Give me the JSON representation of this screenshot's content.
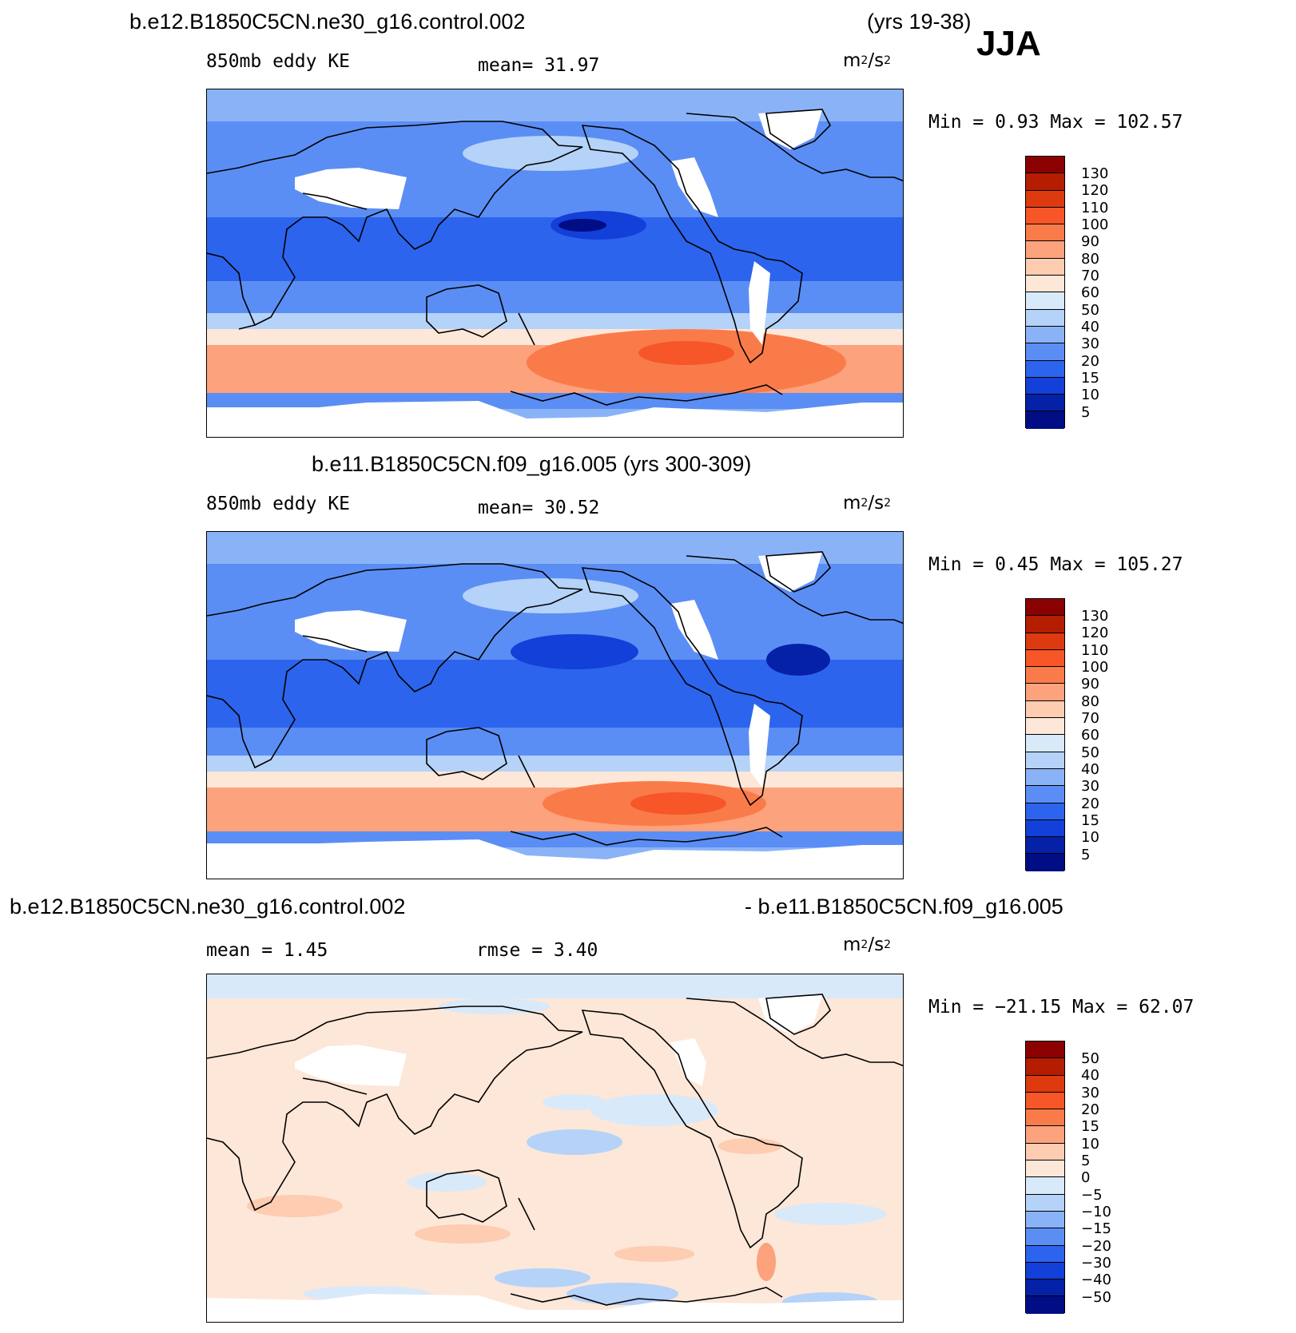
{
  "season": "JJA",
  "panels": [
    {
      "title": "b.e12.B1850C5CN.ne30_g16.control.002",
      "years": "(yrs 19-38)",
      "left_label": "850mb eddy KE",
      "center_label": "mean=   31.97",
      "units_base": "m",
      "units_sup1": "2",
      "units_mid": "/s",
      "units_sup2": "2",
      "minmax": "Min =    0.93 Max = 102.57",
      "colorbar": {
        "labels": [
          "130",
          "120",
          "110",
          "100",
          "90",
          "80",
          "70",
          "60",
          "50",
          "40",
          "30",
          "20",
          "15",
          "10",
          "5"
        ],
        "colors": [
          "#8b0000",
          "#b51d00",
          "#dd3a0f",
          "#f65628",
          "#fa7b4a",
          "#fca27c",
          "#fdccb1",
          "#fde7d8",
          "#d8e9fa",
          "#b5d2f8",
          "#8ab3f7",
          "#5b8ef4",
          "#2d64ed",
          "#1240d8",
          "#0521a8",
          "#000d84"
        ]
      }
    },
    {
      "title": "b.e11.B1850C5CN.f09_g16.005 (yrs 300-309)",
      "left_label": "850mb eddy KE",
      "center_label": "mean=   30.52",
      "units_base": "m",
      "units_sup1": "2",
      "units_mid": "/s",
      "units_sup2": "2",
      "minmax": "Min =    0.45 Max = 105.27",
      "colorbar": {
        "labels": [
          "130",
          "120",
          "110",
          "100",
          "90",
          "80",
          "70",
          "60",
          "50",
          "40",
          "30",
          "20",
          "15",
          "10",
          "5"
        ],
        "colors": [
          "#8b0000",
          "#b51d00",
          "#dd3a0f",
          "#f65628",
          "#fa7b4a",
          "#fca27c",
          "#fdccb1",
          "#fde7d8",
          "#d8e9fa",
          "#b5d2f8",
          "#8ab3f7",
          "#5b8ef4",
          "#2d64ed",
          "#1240d8",
          "#0521a8",
          "#000d84"
        ]
      }
    },
    {
      "title_left": "b.e12.B1850C5CN.ne30_g16.control.002",
      "title_right": "- b.e11.B1850C5CN.f09_g16.005",
      "mean_label": "mean =    1.45",
      "rmse_label": "rmse =    3.40",
      "units_base": "m",
      "units_sup1": "2",
      "units_mid": "/s",
      "units_sup2": "2",
      "minmax": "Min = −21.15 Max =   62.07",
      "colorbar": {
        "labels": [
          "50",
          "40",
          "30",
          "20",
          "15",
          "10",
          "5",
          "0",
          "−5",
          "−10",
          "−15",
          "−20",
          "−30",
          "−40",
          "−50"
        ],
        "colors": [
          "#8b0000",
          "#b51d00",
          "#dd3a0f",
          "#f65628",
          "#fa7b4a",
          "#fca27c",
          "#fdccb1",
          "#fde7d8",
          "#d8e9fa",
          "#b5d2f8",
          "#8ab3f7",
          "#5b8ef4",
          "#2d64ed",
          "#1240d8",
          "#0521a8",
          "#000d84"
        ]
      }
    }
  ]
}
